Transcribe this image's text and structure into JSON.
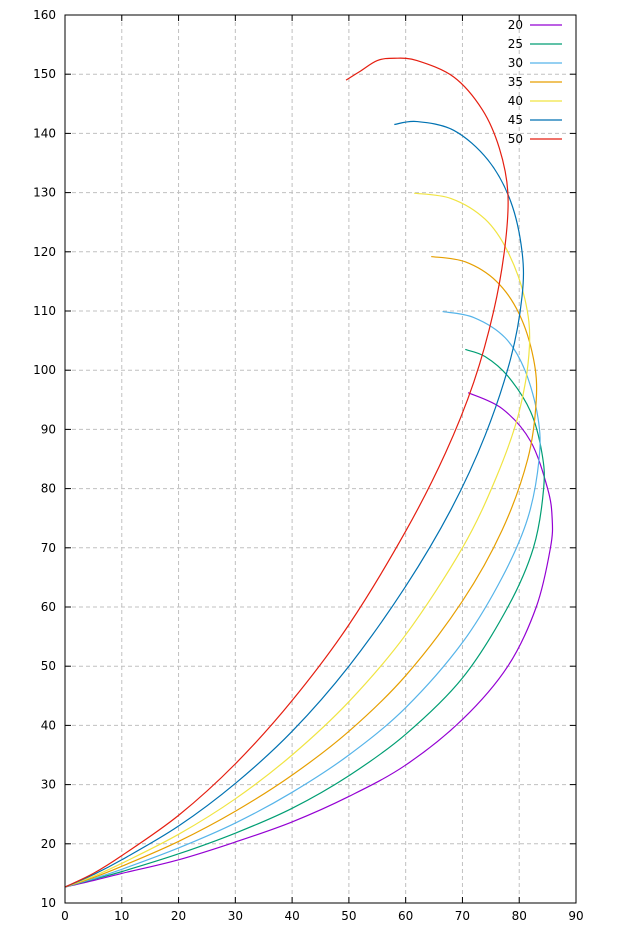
{
  "chart_data": {
    "type": "line",
    "title": "",
    "xlabel": "",
    "ylabel": "",
    "xlim": [
      0,
      90
    ],
    "ylim": [
      10,
      160
    ],
    "xticks": [
      "0",
      "10",
      "20",
      "30",
      "40",
      "50",
      "60",
      "70",
      "80",
      "90"
    ],
    "yticks": [
      "10",
      "20",
      "30",
      "40",
      "50",
      "60",
      "70",
      "80",
      "90",
      "100",
      "110",
      "120",
      "130",
      "140",
      "150",
      "160"
    ],
    "grid": true,
    "legend_position": "top-right",
    "series": [
      {
        "name": "20",
        "color": "#9400d3",
        "points": [
          [
            0,
            12.7
          ],
          [
            5,
            13.8
          ],
          [
            10,
            15.0
          ],
          [
            20,
            17.3
          ],
          [
            30,
            20.3
          ],
          [
            40,
            23.7
          ],
          [
            50,
            28.0
          ],
          [
            60,
            33.3
          ],
          [
            70,
            41.0
          ],
          [
            78,
            50.0
          ],
          [
            83,
            60.0
          ],
          [
            85.5,
            70.0
          ],
          [
            85.8,
            75.0
          ],
          [
            85,
            80.0
          ],
          [
            82,
            88.0
          ],
          [
            77,
            93.5
          ],
          [
            71,
            96.2
          ]
        ]
      },
      {
        "name": "25",
        "color": "#009e73",
        "points": [
          [
            0,
            12.7
          ],
          [
            5,
            14.0
          ],
          [
            10,
            15.3
          ],
          [
            20,
            18.3
          ],
          [
            30,
            21.8
          ],
          [
            40,
            26.0
          ],
          [
            50,
            31.5
          ],
          [
            60,
            38.5
          ],
          [
            70,
            48.0
          ],
          [
            78,
            60.0
          ],
          [
            82.5,
            70.0
          ],
          [
            84.3,
            80.0
          ],
          [
            84,
            86.0
          ],
          [
            82,
            93.0
          ],
          [
            78,
            99.0
          ],
          [
            74,
            102.3
          ],
          [
            70.5,
            103.5
          ]
        ]
      },
      {
        "name": "30",
        "color": "#56b4e9",
        "points": [
          [
            0,
            12.7
          ],
          [
            5,
            14.1
          ],
          [
            10,
            15.7
          ],
          [
            20,
            19.3
          ],
          [
            30,
            23.5
          ],
          [
            40,
            28.7
          ],
          [
            50,
            35.0
          ],
          [
            60,
            43.0
          ],
          [
            70,
            54.0
          ],
          [
            77,
            65.0
          ],
          [
            81.5,
            75.0
          ],
          [
            83.5,
            85.0
          ],
          [
            83.3,
            92.0
          ],
          [
            81,
            100.0
          ],
          [
            77.5,
            105.5
          ],
          [
            72,
            108.9
          ],
          [
            66.5,
            109.9
          ]
        ]
      },
      {
        "name": "35",
        "color": "#e69f00",
        "points": [
          [
            0,
            12.7
          ],
          [
            5,
            14.3
          ],
          [
            10,
            16.2
          ],
          [
            20,
            20.4
          ],
          [
            30,
            25.5
          ],
          [
            40,
            31.6
          ],
          [
            50,
            39.0
          ],
          [
            60,
            48.4
          ],
          [
            70,
            61.0
          ],
          [
            77,
            73.0
          ],
          [
            81.5,
            85.0
          ],
          [
            83,
            95.0
          ],
          [
            82.5,
            102.0
          ],
          [
            80,
            109.5
          ],
          [
            76,
            115.0
          ],
          [
            70.5,
            118.3
          ],
          [
            64.5,
            119.2
          ]
        ]
      },
      {
        "name": "40",
        "color": "#f0e442",
        "points": [
          [
            0,
            12.7
          ],
          [
            5,
            14.5
          ],
          [
            10,
            16.7
          ],
          [
            20,
            21.6
          ],
          [
            30,
            27.6
          ],
          [
            40,
            35.0
          ],
          [
            50,
            44.0
          ],
          [
            60,
            55.3
          ],
          [
            70,
            70.0
          ],
          [
            76,
            82.0
          ],
          [
            80,
            93.0
          ],
          [
            81.8,
            104.0
          ],
          [
            81,
            112.0
          ],
          [
            78,
            120.0
          ],
          [
            74,
            125.5
          ],
          [
            68,
            129.0
          ],
          [
            61.5,
            129.9
          ]
        ]
      },
      {
        "name": "45",
        "color": "#0072b2",
        "points": [
          [
            0,
            12.7
          ],
          [
            5,
            14.8
          ],
          [
            10,
            17.3
          ],
          [
            20,
            23.0
          ],
          [
            30,
            30.2
          ],
          [
            40,
            39.0
          ],
          [
            50,
            50.0
          ],
          [
            60,
            63.5
          ],
          [
            68,
            76.5
          ],
          [
            74,
            89.0
          ],
          [
            78.5,
            102.0
          ],
          [
            80.5,
            112.5
          ],
          [
            80.5,
            120.0
          ],
          [
            78.5,
            128.5
          ],
          [
            74.5,
            135.5
          ],
          [
            68.5,
            140.5
          ],
          [
            62,
            142.0
          ],
          [
            58,
            141.5
          ]
        ]
      },
      {
        "name": "50",
        "color": "#e51e10",
        "points": [
          [
            0,
            12.7
          ],
          [
            5,
            15.0
          ],
          [
            10,
            18.0
          ],
          [
            20,
            24.8
          ],
          [
            30,
            33.5
          ],
          [
            40,
            44.2
          ],
          [
            50,
            57.0
          ],
          [
            60,
            72.8
          ],
          [
            67,
            86.0
          ],
          [
            72,
            98.0
          ],
          [
            75.5,
            110.0
          ],
          [
            77.5,
            121.0
          ],
          [
            78,
            130.0
          ],
          [
            76.5,
            137.5
          ],
          [
            73.5,
            144.0
          ],
          [
            68.5,
            149.5
          ],
          [
            62,
            152.3
          ],
          [
            58,
            152.7
          ],
          [
            55,
            152.3
          ],
          [
            52,
            150.5
          ],
          [
            49.5,
            149.0
          ]
        ]
      }
    ]
  }
}
